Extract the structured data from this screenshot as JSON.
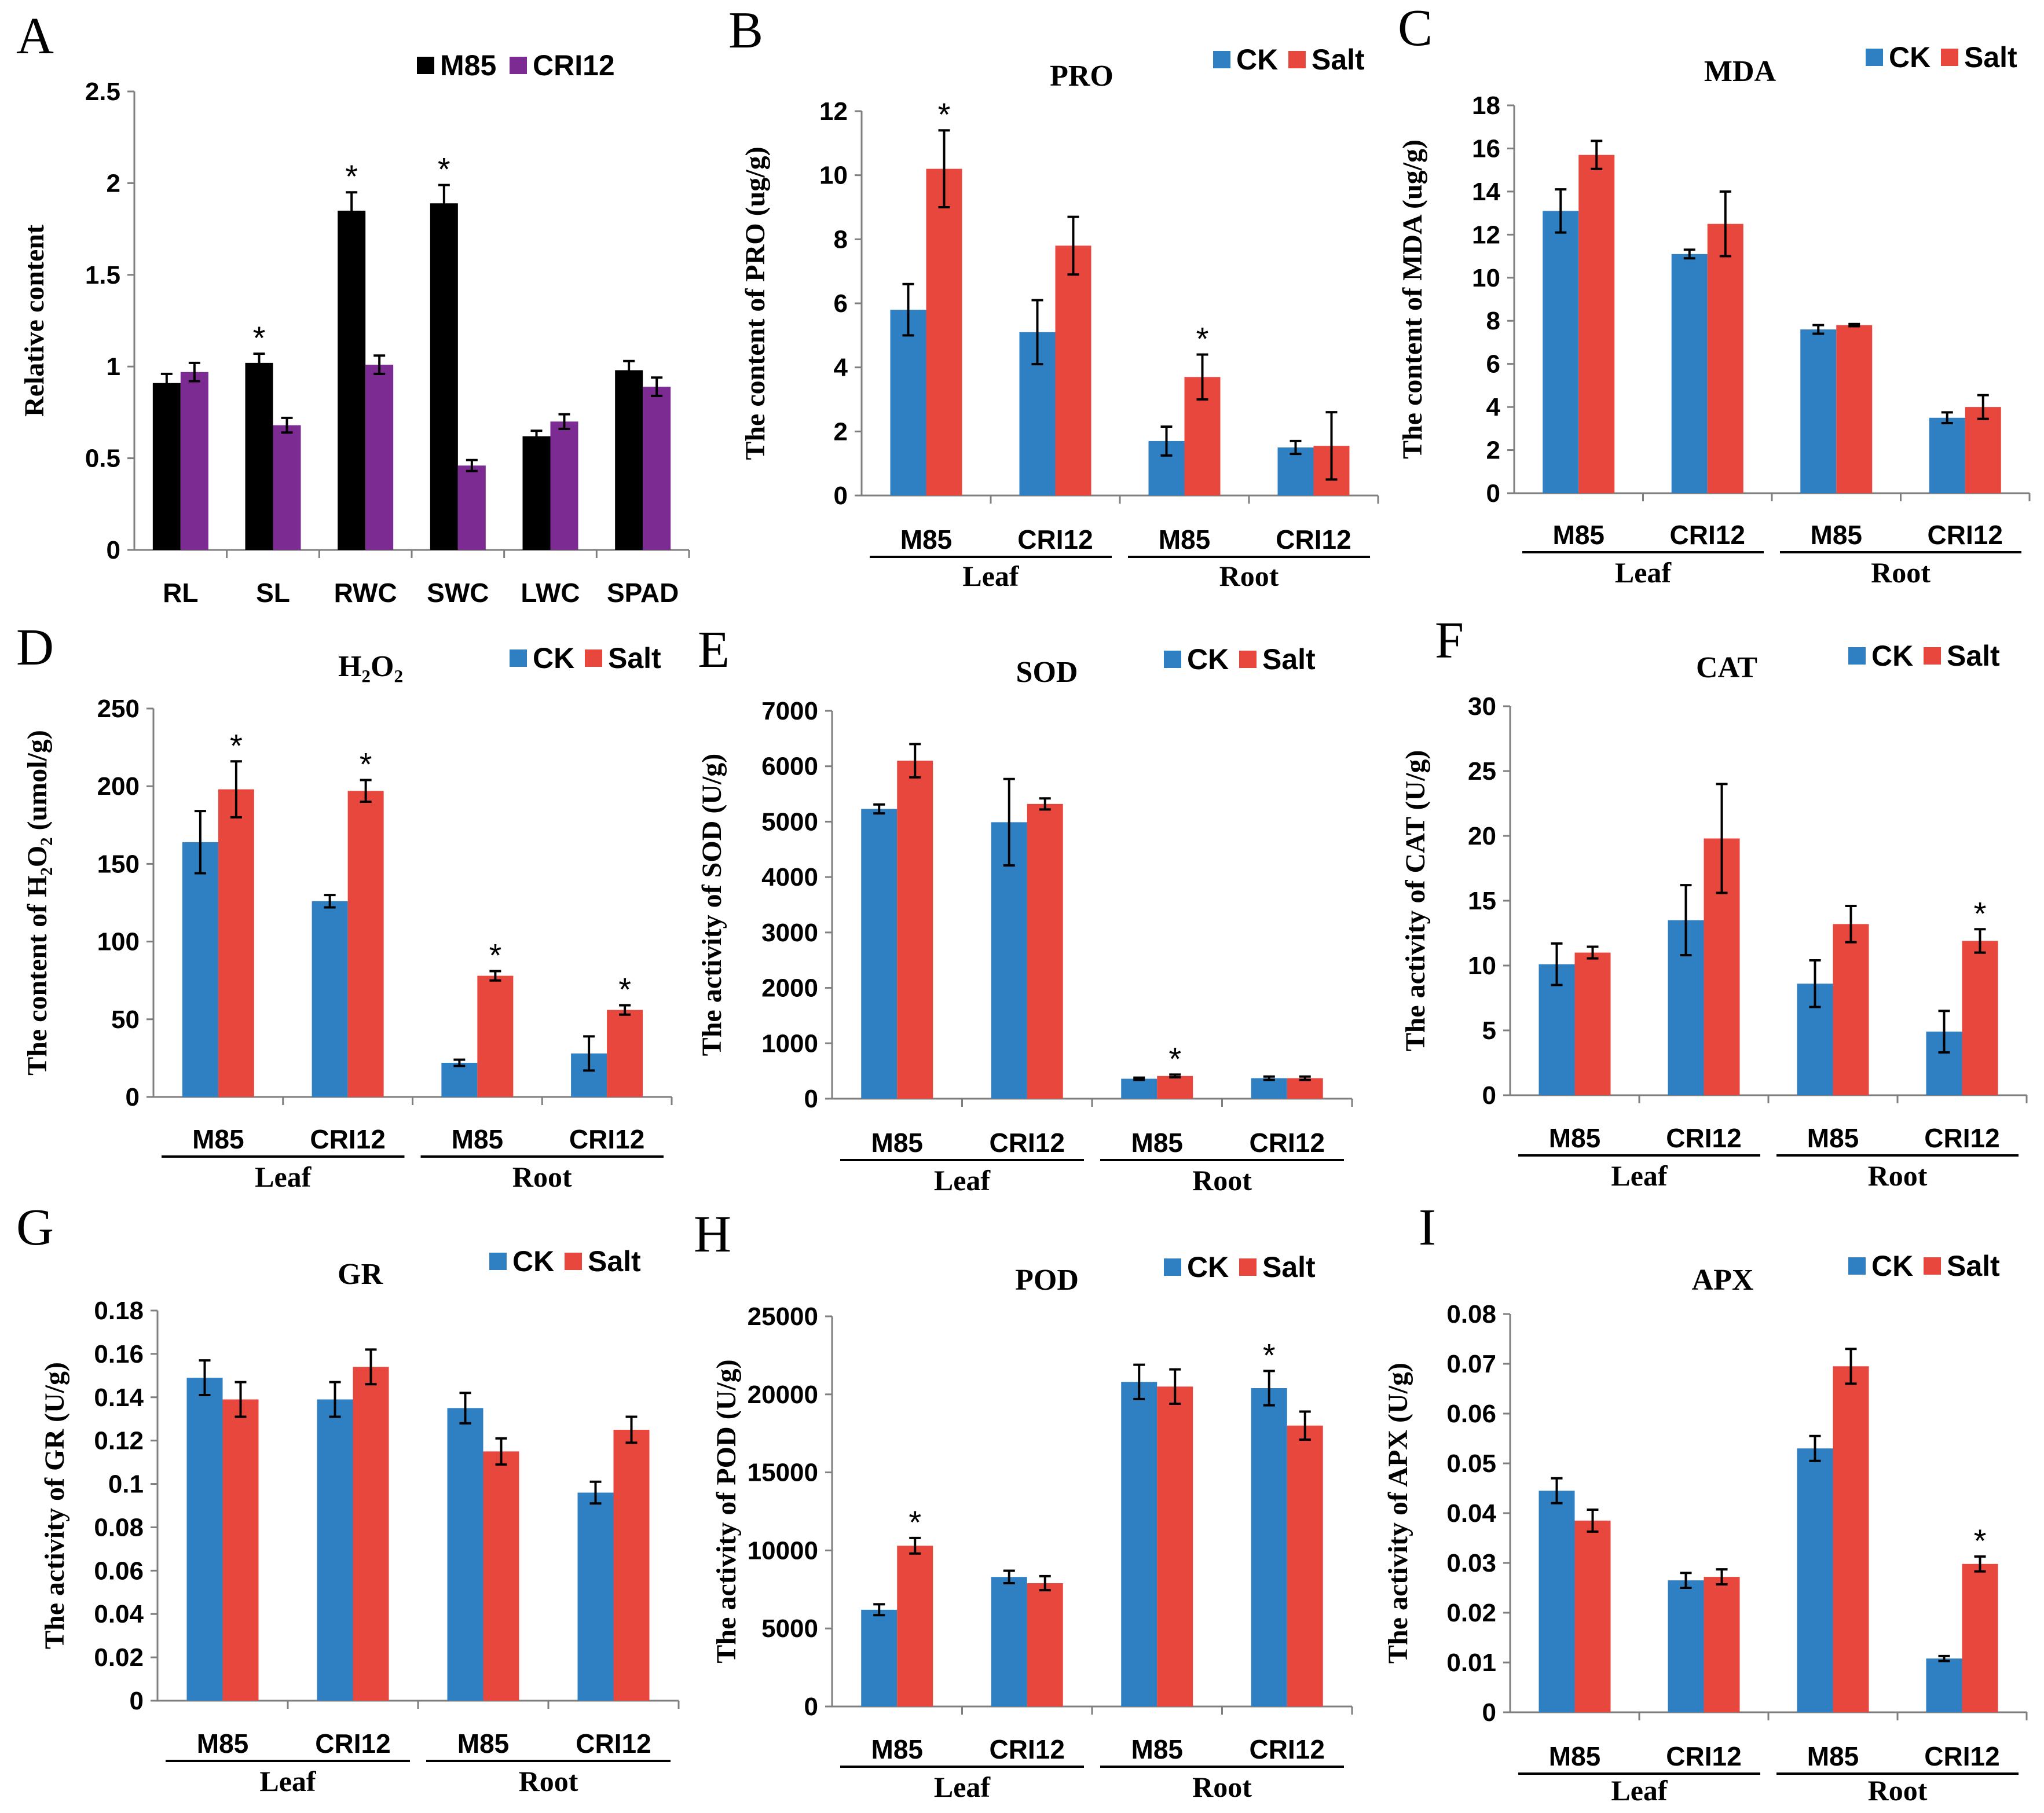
{
  "colors": {
    "ck": "#2f7fc3",
    "salt": "#e8473e",
    "m85": "#000000",
    "cri12": "#7b2b92"
  },
  "chart_data": [
    {
      "id": "A",
      "letter": "A",
      "type": "bar",
      "title": "",
      "ylabel": "Relative content",
      "ylim": [
        0,
        2.5
      ],
      "ticks": [
        "0",
        "0.5",
        "1",
        "1.5",
        "2",
        "2.5"
      ],
      "categories": [
        "RL",
        "SL",
        "RWC",
        "SWC",
        "LWC",
        "SPAD"
      ],
      "series": [
        {
          "name": "M85",
          "color_key": "m85",
          "values": [
            0.91,
            1.02,
            1.85,
            1.89,
            0.62,
            0.98
          ],
          "errors": [
            0.05,
            0.05,
            0.1,
            0.1,
            0.03,
            0.05
          ]
        },
        {
          "name": "CRI12",
          "color_key": "cri12",
          "values": [
            0.97,
            0.68,
            1.01,
            0.46,
            0.7,
            0.89
          ],
          "errors": [
            0.05,
            0.04,
            0.05,
            0.03,
            0.04,
            0.05
          ]
        }
      ],
      "stars": [
        1,
        2,
        3
      ]
    },
    {
      "id": "B",
      "letter": "B",
      "type": "bar",
      "title": "PRO",
      "ylabel": "The content of PRO (ug/g)",
      "ylim": [
        0,
        12
      ],
      "ticks": [
        "0",
        "2",
        "4",
        "6",
        "8",
        "10",
        "12"
      ],
      "categories": [
        "M85",
        "CRI12",
        "M85",
        "CRI12"
      ],
      "groups": [
        "Leaf",
        "Root"
      ],
      "series": [
        {
          "name": "CK",
          "color_key": "ck",
          "values": [
            5.8,
            5.1,
            1.7,
            1.5
          ],
          "errors": [
            0.8,
            1.0,
            0.45,
            0.2
          ]
        },
        {
          "name": "Salt",
          "color_key": "salt",
          "values": [
            10.2,
            7.8,
            3.7,
            1.55
          ],
          "errors": [
            1.2,
            0.9,
            0.7,
            1.05
          ]
        }
      ],
      "stars": [
        0,
        2
      ]
    },
    {
      "id": "C",
      "letter": "C",
      "type": "bar",
      "title": "MDA",
      "ylabel": "The content of MDA (ug/g)",
      "ylim": [
        0,
        18
      ],
      "ticks": [
        "0",
        "2",
        "4",
        "6",
        "8",
        "10",
        "12",
        "14",
        "16",
        "18"
      ],
      "categories": [
        "M85",
        "CRI12",
        "M85",
        "CRI12"
      ],
      "groups": [
        "Leaf",
        "Root"
      ],
      "series": [
        {
          "name": "CK",
          "color_key": "ck",
          "values": [
            13.1,
            11.1,
            7.6,
            3.5
          ],
          "errors": [
            1.0,
            0.2,
            0.2,
            0.25
          ]
        },
        {
          "name": "Salt",
          "color_key": "salt",
          "values": [
            15.7,
            12.5,
            7.8,
            4.0
          ],
          "errors": [
            0.65,
            1.5,
            0.05,
            0.55
          ]
        }
      ],
      "stars": []
    },
    {
      "id": "D",
      "letter": "D",
      "type": "bar",
      "title": "H₂O₂",
      "ylabel": "The content of H₂O₂ (umol/g)",
      "ylim": [
        0,
        250
      ],
      "ticks": [
        "0",
        "50",
        "100",
        "150",
        "200",
        "250"
      ],
      "categories": [
        "M85",
        "CRI12",
        "M85",
        "CRI12"
      ],
      "groups": [
        "Leaf",
        "Root"
      ],
      "series": [
        {
          "name": "CK",
          "color_key": "ck",
          "values": [
            164,
            126,
            22,
            28
          ],
          "errors": [
            20,
            4,
            2,
            11
          ]
        },
        {
          "name": "Salt",
          "color_key": "salt",
          "values": [
            198,
            197,
            78,
            56
          ],
          "errors": [
            18,
            7,
            3,
            3
          ]
        }
      ],
      "stars": [
        0,
        1,
        2,
        3
      ]
    },
    {
      "id": "E",
      "letter": "E",
      "type": "bar",
      "title": "SOD",
      "ylabel": "The activity of SOD (U/g)",
      "ylim": [
        0,
        7000
      ],
      "ticks": [
        "0",
        "1000",
        "2000",
        "3000",
        "4000",
        "5000",
        "6000",
        "7000"
      ],
      "categories": [
        "M85",
        "CRI12",
        "M85",
        "CRI12"
      ],
      "groups": [
        "Leaf",
        "Root"
      ],
      "series": [
        {
          "name": "CK",
          "color_key": "ck",
          "values": [
            5230,
            4990,
            360,
            370
          ],
          "errors": [
            80,
            780,
            20,
            30
          ]
        },
        {
          "name": "Salt",
          "color_key": "salt",
          "values": [
            6100,
            5320,
            410,
            370
          ],
          "errors": [
            300,
            100,
            25,
            30
          ]
        }
      ],
      "stars": [
        2
      ]
    },
    {
      "id": "F",
      "letter": "F",
      "type": "bar",
      "title": "CAT",
      "ylabel": "The activity of CAT (U/g)",
      "ylim": [
        0,
        30
      ],
      "ticks": [
        "0",
        "5",
        "10",
        "15",
        "20",
        "25",
        "30"
      ],
      "categories": [
        "M85",
        "CRI12",
        "M85",
        "CRI12"
      ],
      "groups": [
        "Leaf",
        "Root"
      ],
      "series": [
        {
          "name": "CK",
          "color_key": "ck",
          "values": [
            10.1,
            13.5,
            8.6,
            4.9
          ],
          "errors": [
            1.6,
            2.7,
            1.8,
            1.6
          ]
        },
        {
          "name": "Salt",
          "color_key": "salt",
          "values": [
            11.0,
            19.8,
            13.2,
            11.9
          ],
          "errors": [
            0.45,
            4.2,
            1.4,
            0.9
          ]
        }
      ],
      "stars": [
        3
      ]
    },
    {
      "id": "G",
      "letter": "G",
      "type": "bar",
      "title": "GR",
      "ylabel": "The activity of GR (U/g)",
      "ylim": [
        0,
        0.18
      ],
      "ticks": [
        "0",
        "0.02",
        "0.04",
        "0.06",
        "0.08",
        "0.1",
        "0.12",
        "0.14",
        "0.16",
        "0.18"
      ],
      "categories": [
        "M85",
        "CRI12",
        "M85",
        "CRI12"
      ],
      "groups": [
        "Leaf",
        "Root"
      ],
      "series": [
        {
          "name": "CK",
          "color_key": "ck",
          "values": [
            0.149,
            0.139,
            0.135,
            0.096
          ],
          "errors": [
            0.008,
            0.008,
            0.007,
            0.005
          ]
        },
        {
          "name": "Salt",
          "color_key": "salt",
          "values": [
            0.139,
            0.154,
            0.115,
            0.125
          ],
          "errors": [
            0.008,
            0.008,
            0.006,
            0.006
          ]
        }
      ],
      "stars": []
    },
    {
      "id": "H",
      "letter": "H",
      "type": "bar",
      "title": "POD",
      "ylabel": "The activity of POD (U/g)",
      "ylim": [
        0,
        25000
      ],
      "ticks": [
        "0",
        "5000",
        "10000",
        "15000",
        "20000",
        "25000"
      ],
      "categories": [
        "M85",
        "CRI12",
        "M85",
        "CRI12"
      ],
      "groups": [
        "Leaf",
        "Root"
      ],
      "series": [
        {
          "name": "CK",
          "color_key": "ck",
          "values": [
            6200,
            8300,
            20800,
            20400
          ],
          "errors": [
            350,
            400,
            1100,
            1100
          ]
        },
        {
          "name": "Salt",
          "color_key": "salt",
          "values": [
            10300,
            7900,
            20500,
            18000
          ],
          "errors": [
            500,
            450,
            1100,
            900
          ]
        }
      ],
      "stars": [
        0,
        3
      ]
    },
    {
      "id": "I",
      "letter": "I",
      "type": "bar",
      "title": "APX",
      "ylabel": "The activity of APX (U/g)",
      "ylim": [
        0,
        0.08
      ],
      "ticks": [
        "0",
        "0.01",
        "0.02",
        "0.03",
        "0.04",
        "0.05",
        "0.06",
        "0.07",
        "0.08"
      ],
      "categories": [
        "M85",
        "CRI12",
        "M85",
        "CRI12"
      ],
      "groups": [
        "Leaf",
        "Root"
      ],
      "series": [
        {
          "name": "CK",
          "color_key": "ck",
          "values": [
            0.0445,
            0.0265,
            0.053,
            0.0108
          ],
          "errors": [
            0.0025,
            0.0015,
            0.0025,
            0.0005
          ]
        },
        {
          "name": "Salt",
          "color_key": "salt",
          "values": [
            0.0385,
            0.0272,
            0.0695,
            0.0298
          ],
          "errors": [
            0.0022,
            0.0015,
            0.0035,
            0.0015
          ]
        }
      ],
      "stars": [
        3
      ]
    }
  ]
}
